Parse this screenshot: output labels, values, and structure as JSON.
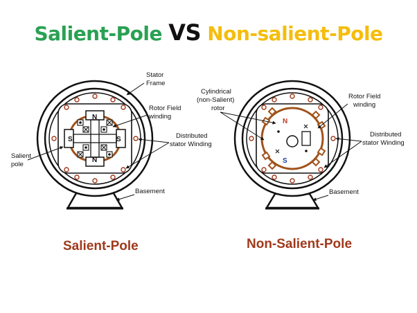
{
  "title": {
    "part1": "Salient-Pole",
    "part2": "VS",
    "part3": "Non-salient-Pole",
    "colors": {
      "part1": "#2aa152",
      "part2": "#111111",
      "part3": "#f5bd0c"
    }
  },
  "left_diagram": {
    "caption": "Salient-Pole",
    "labels": {
      "stator_frame_1": "Stator",
      "stator_frame_2": "Frame",
      "rotor_field_1": "Rotor Field",
      "rotor_field_2": "winding",
      "distributed_1": "Distributed",
      "distributed_2": "stator Winding",
      "salient_1": "Salient",
      "salient_2": "pole",
      "basement": "Basement"
    },
    "poles": {
      "top": "N",
      "bottom": "N",
      "left": "S",
      "right": "S"
    }
  },
  "right_diagram": {
    "caption": "Non-Salient-Pole",
    "labels": {
      "cylindrical_1": "Cylindrical",
      "cylindrical_2": "(non-Salient)",
      "cylindrical_3": "rotor",
      "rotor_field_1": "Rotor Field",
      "rotor_field_2": "winding",
      "distributed_1": "Distributed",
      "distributed_2": "stator Winding",
      "basement": "Basement"
    },
    "poles": {
      "north": "N",
      "south": "S"
    },
    "pole_colors": {
      "north": "#c0392b",
      "south": "#1f3f9a"
    }
  },
  "colors": {
    "winding": "#a0521b",
    "caption": "#a0391b"
  }
}
